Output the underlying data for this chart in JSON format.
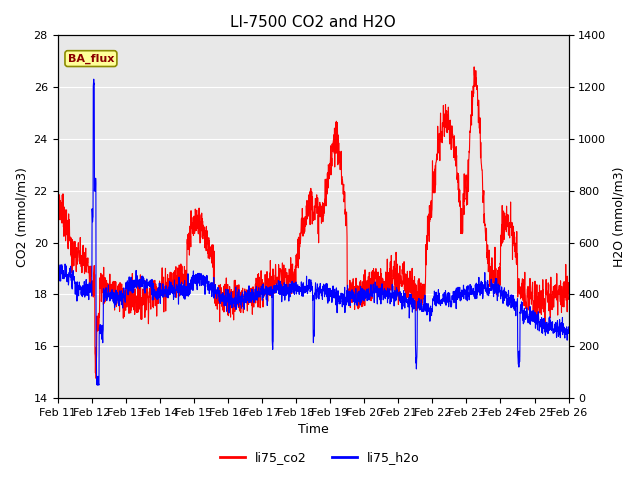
{
  "title": "LI-7500 CO2 and H2O",
  "xlabel": "Time",
  "ylabel_left": "CO2 (mmol/m3)",
  "ylabel_right": "H2O (mmol/m3)",
  "ylim_left": [
    14,
    28
  ],
  "ylim_right": [
    0,
    1400
  ],
  "yticks_left": [
    14,
    16,
    18,
    20,
    22,
    24,
    26,
    28
  ],
  "yticks_right": [
    0,
    200,
    400,
    600,
    800,
    1000,
    1200,
    1400
  ],
  "x_tick_labels": [
    "Feb 11",
    "Feb 12",
    "Feb 13",
    "Feb 14",
    "Feb 15",
    "Feb 16",
    "Feb 17",
    "Feb 18",
    "Feb 19",
    "Feb 20",
    "Feb 21",
    "Feb 22",
    "Feb 23",
    "Feb 24",
    "Feb 25",
    "Feb 26"
  ],
  "color_co2": "#FF0000",
  "color_h2o": "#0000FF",
  "label_co2": "li75_co2",
  "label_h2o": "li75_h2o",
  "bg_color": "#E8E8E8",
  "annotation_text": "BA_flux",
  "annotation_bg": "#FFFF99",
  "annotation_border": "#8B8B00",
  "linewidth": 0.8,
  "title_fontsize": 11,
  "axis_label_fontsize": 9,
  "tick_fontsize": 8,
  "legend_fontsize": 9,
  "fig_width": 6.4,
  "fig_height": 4.8,
  "dpi": 100
}
